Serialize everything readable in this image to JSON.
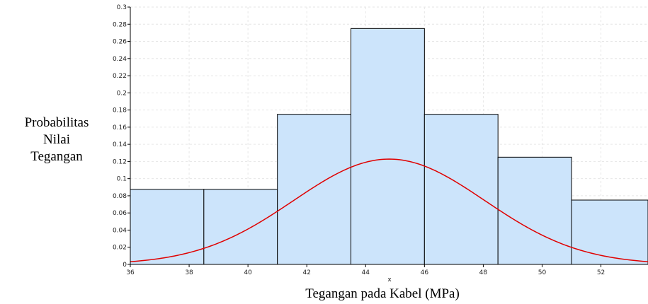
{
  "chart_data": {
    "type": "bar",
    "title": "",
    "xlabel": "Tegangan pada Kabel (MPa)",
    "x_axis_variable": "x",
    "ylabel_lines": [
      "Probabilitas",
      "Nilai",
      "Tegangan"
    ],
    "xlim": [
      36,
      53.6
    ],
    "ylim": [
      0,
      0.3
    ],
    "x_ticks": [
      36,
      38,
      40,
      42,
      44,
      46,
      48,
      50,
      52
    ],
    "y_ticks": [
      0,
      0.02,
      0.04,
      0.06,
      0.08,
      0.1,
      0.12,
      0.14,
      0.16,
      0.18,
      0.2,
      0.22,
      0.24,
      0.26,
      0.28,
      0.3
    ],
    "histogram": {
      "bin_edges": [
        36,
        38.5,
        41,
        43.5,
        46,
        48.5,
        51,
        53.6
      ],
      "values": [
        0.0875,
        0.0875,
        0.175,
        0.275,
        0.175,
        0.125,
        0.075
      ],
      "fill_color": "#cce4fb",
      "edge_color": "#000000"
    },
    "fitted_curve": {
      "distribution": "normal",
      "mean": 44.8,
      "std": 3.25,
      "color": "#e00000"
    },
    "grid": true
  }
}
